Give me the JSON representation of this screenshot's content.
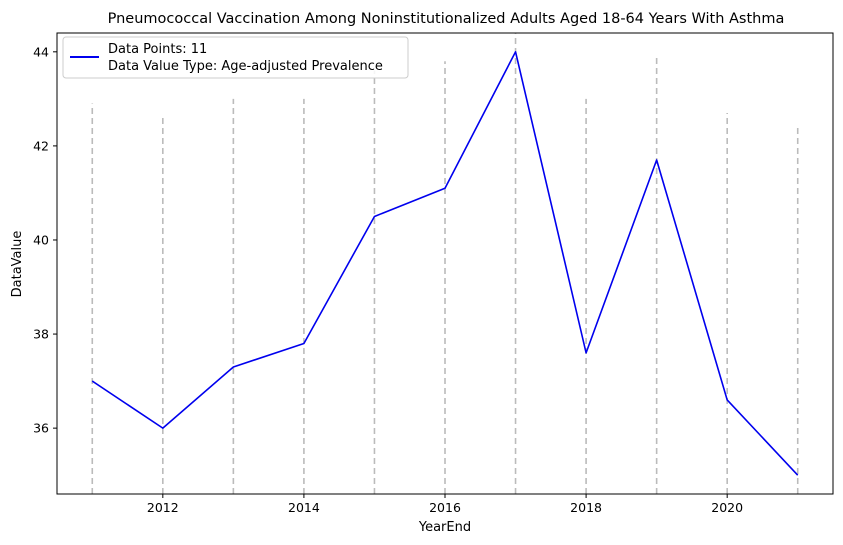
{
  "chart_data": {
    "type": "line",
    "title": "Pneumococcal Vaccination Among Noninstitutionalized Adults Aged 18-64 Years With Asthma",
    "xlabel": "YearEnd",
    "ylabel": "DataValue",
    "xlim": [
      2010.5,
      2021.5
    ],
    "ylim": [
      34.6,
      44.4
    ],
    "xticks": [
      2012,
      2014,
      2016,
      2018,
      2020
    ],
    "yticks": [
      36,
      38,
      40,
      42,
      44
    ],
    "grid": false,
    "legend_position": "upper-left",
    "series": [
      {
        "name": "Data Points: 11",
        "name_line2": "Data Value Type: Age-adjusted Prevalence",
        "color": "#0000ee",
        "x": [
          2011,
          2012,
          2013,
          2014,
          2015,
          2016,
          2017,
          2018,
          2019,
          2020,
          2021
        ],
        "y": [
          37.0,
          36.0,
          37.3,
          37.8,
          40.5,
          41.1,
          44.0,
          37.6,
          41.7,
          36.6,
          35.0
        ]
      }
    ],
    "error_bars": {
      "style": "dashed",
      "color": "#bbbbbb",
      "x": [
        2011,
        2012,
        2013,
        2014,
        2015,
        2016,
        2017,
        2018,
        2019,
        2020,
        2021
      ],
      "low": [
        34.6,
        34.6,
        34.6,
        34.6,
        34.6,
        34.6,
        34.6,
        34.6,
        34.6,
        34.6,
        34.6
      ],
      "high": [
        42.9,
        42.6,
        43.0,
        43.0,
        43.6,
        43.8,
        44.4,
        43.0,
        43.9,
        42.7,
        42.4
      ]
    }
  }
}
